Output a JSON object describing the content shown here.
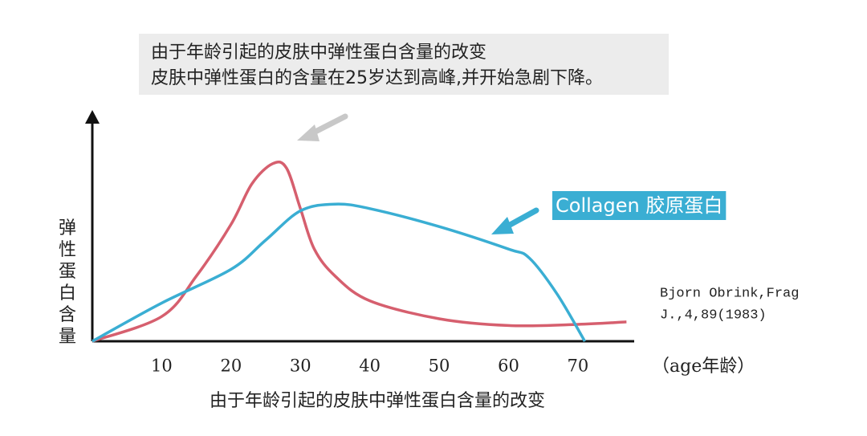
{
  "chart_data": {
    "type": "line",
    "title": "由于年龄引起的皮肤中弹性蛋白含量的改变",
    "annotations": [
      "由于年龄引起的皮肤中弹性蛋白含量的改变",
      "皮肤中弹性蛋白的含量在25岁达到高峰,并开始急剧下降。"
    ],
    "citation": [
      "Bjorn Obrink,Frag",
      "J.,4,89(1983)"
    ],
    "x_label": "（age年龄）",
    "y_label": "弹性蛋白含量",
    "xlim": [
      0,
      78
    ],
    "xticks": [
      10,
      20,
      30,
      40,
      50,
      60,
      70
    ],
    "ylim": [
      0,
      100
    ],
    "series": [
      {
        "color": "#d65f6e",
        "x": [
          0,
          10,
          15,
          20,
          23,
          26,
          28,
          30,
          32,
          35,
          40,
          50,
          60,
          70,
          77
        ],
        "values": [
          0,
          11,
          29,
          52,
          70,
          79,
          77,
          59,
          41,
          29,
          18,
          10,
          7,
          7.5,
          8.6
        ]
      },
      {
        "name": "Collagen 胶原蛋白",
        "color": "#3aaed3",
        "x": [
          0,
          10,
          20,
          25,
          30,
          35,
          40,
          50,
          60,
          63,
          67,
          71
        ],
        "values": [
          0,
          17,
          32,
          45,
          58,
          61,
          59,
          51,
          41,
          37,
          21,
          0
        ]
      }
    ]
  }
}
